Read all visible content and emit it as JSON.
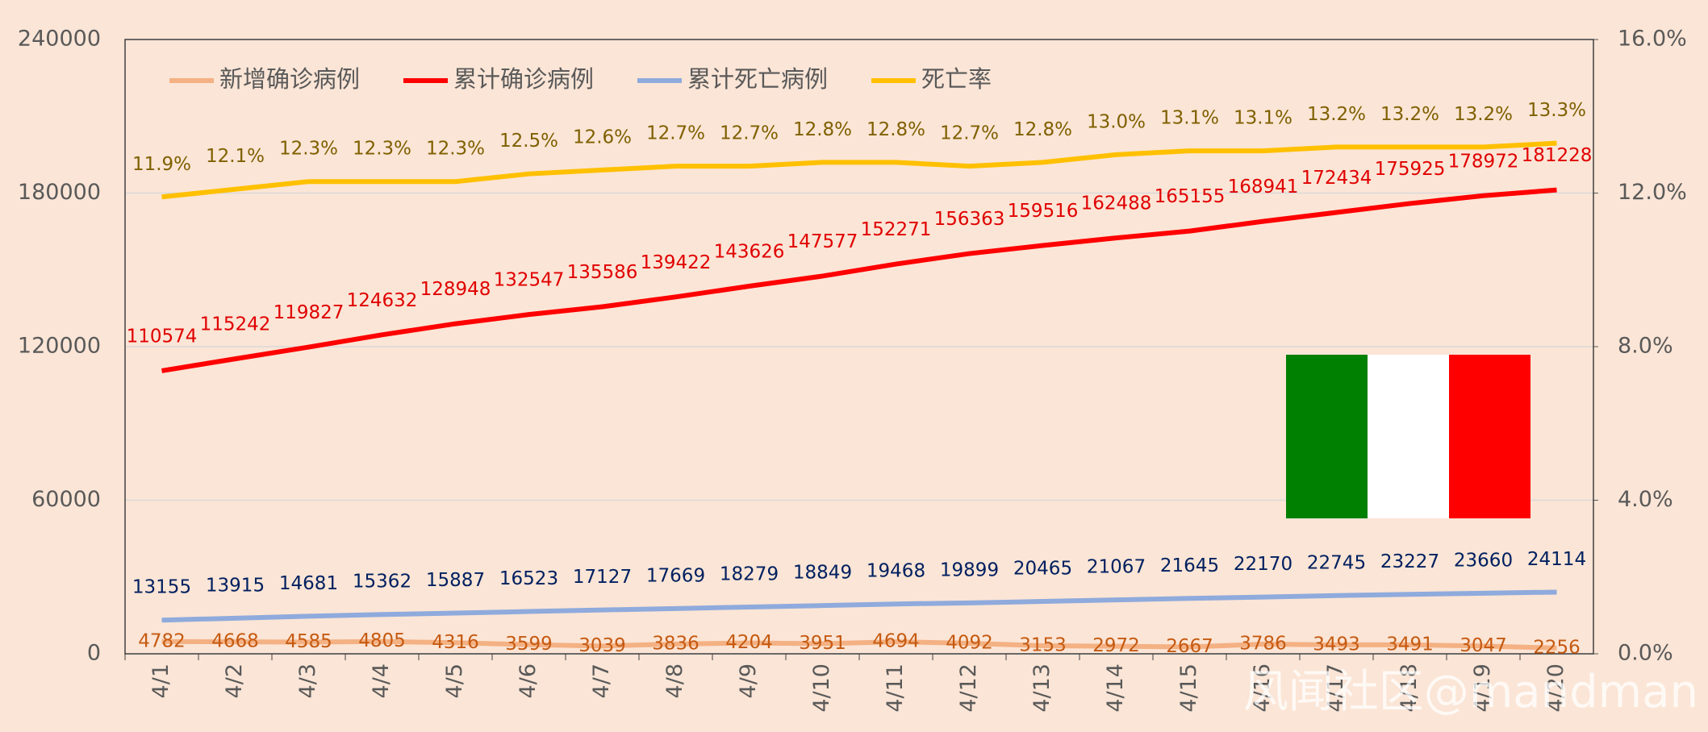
{
  "chart_data": {
    "type": "line",
    "categories": [
      "4/1",
      "4/2",
      "4/3",
      "4/4",
      "4/5",
      "4/6",
      "4/7",
      "4/8",
      "4/9",
      "4/10",
      "4/11",
      "4/12",
      "4/13",
      "4/14",
      "4/15",
      "4/16",
      "4/17",
      "4/18",
      "4/19",
      "4/20"
    ],
    "series": [
      {
        "name": "新增确诊病例",
        "color": "#f4b183",
        "label_color": "#c55a11",
        "values": [
          4782,
          4668,
          4585,
          4805,
          4316,
          3599,
          3039,
          3836,
          4204,
          3951,
          4694,
          4092,
          3153,
          2972,
          2667,
          3786,
          3493,
          3491,
          3047,
          2256
        ]
      },
      {
        "name": "累计确诊病例",
        "color": "#ff0000",
        "label_color": "#e00000",
        "values": [
          110574,
          115242,
          119827,
          124632,
          128948,
          132547,
          135586,
          139422,
          143626,
          147577,
          152271,
          156363,
          159516,
          162488,
          165155,
          168941,
          172434,
          175925,
          178972,
          181228
        ]
      },
      {
        "name": "累计死亡病例",
        "color": "#8faadc",
        "label_color": "#002060",
        "values": [
          13155,
          13915,
          14681,
          15362,
          15887,
          16523,
          17127,
          17669,
          18279,
          18849,
          19468,
          19899,
          20465,
          21067,
          21645,
          22170,
          22745,
          23227,
          23660,
          24114
        ]
      },
      {
        "name": "死亡率",
        "color": "#ffc000",
        "label_color": "#7f6000",
        "axis": "y2",
        "values": [
          11.9,
          12.1,
          12.3,
          12.3,
          12.3,
          12.5,
          12.6,
          12.7,
          12.7,
          12.8,
          12.8,
          12.7,
          12.8,
          13.0,
          13.1,
          13.1,
          13.2,
          13.2,
          13.2,
          13.3
        ],
        "value_labels": [
          "11.9%",
          "12.1%",
          "12.3%",
          "12.3%",
          "12.3%",
          "12.5%",
          "12.6%",
          "12.7%",
          "12.7%",
          "12.8%",
          "12.8%",
          "12.7%",
          "12.8%",
          "13.0%",
          "13.1%",
          "13.1%",
          "13.2%",
          "13.2%",
          "13.2%",
          "13.3%"
        ]
      }
    ],
    "ylim": [
      0,
      240000
    ],
    "yticks": [
      0,
      60000,
      120000,
      180000,
      240000
    ],
    "y2lim": [
      0,
      16
    ],
    "y2ticks": [
      {
        "value": 0,
        "label": "0.0%"
      },
      {
        "value": 4,
        "label": "4.0%"
      },
      {
        "value": 8,
        "label": "8.0%"
      },
      {
        "value": 12,
        "label": "12.0%"
      },
      {
        "value": 16,
        "label": "16.0%"
      }
    ],
    "grid": true,
    "legend": "top-left",
    "watermark": "风闻社区@mandman"
  }
}
